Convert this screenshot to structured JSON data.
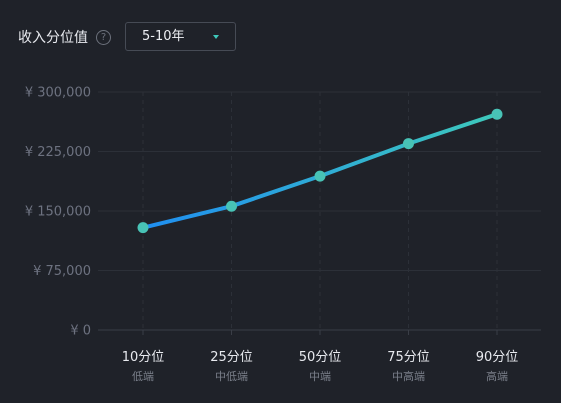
{
  "header": {
    "label": "收入分位值",
    "help_icon": "question-circle-icon",
    "select_value": "5-10年",
    "select_icon": "caret-down-icon"
  },
  "colors": {
    "background": "#1f2229",
    "line_start": "#1f8ef1",
    "line_end": "#3ec9bb",
    "point": "#48c3b6",
    "grid": "#2c3038"
  },
  "chart_data": {
    "type": "line",
    "categories": [
      "10分位",
      "25分位",
      "50分位",
      "75分位",
      "90分位"
    ],
    "category_sublabels": [
      "低端",
      "中低端",
      "中端",
      "中高端",
      "高端"
    ],
    "series": [
      {
        "values": [
          129000,
          156000,
          194000,
          235000,
          272000
        ]
      }
    ],
    "yticks": [
      0,
      75000,
      150000,
      225000,
      300000
    ],
    "ytick_labels": [
      "¥ 0",
      "¥ 75,000",
      "¥ 150,000",
      "¥ 225,000",
      "¥ 300,000"
    ],
    "ylim": [
      0,
      300000
    ],
    "grid": true,
    "title": "",
    "xlabel": "",
    "ylabel": ""
  }
}
